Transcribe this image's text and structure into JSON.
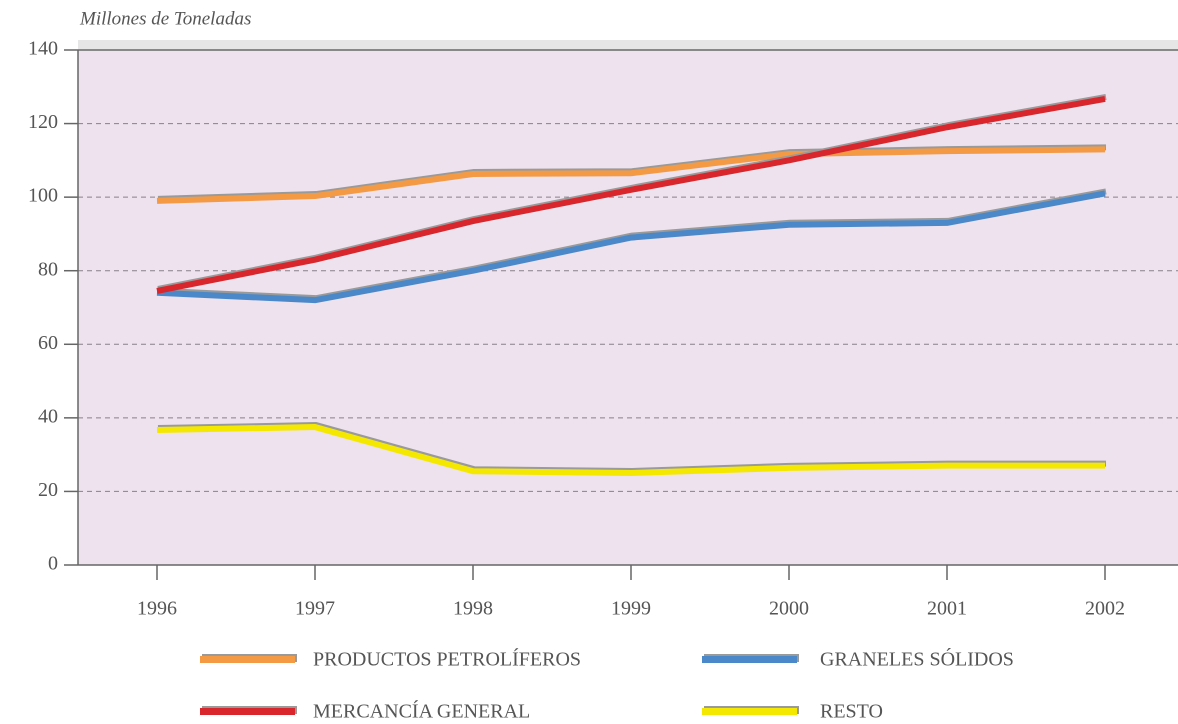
{
  "chart_data": {
    "type": "line",
    "y_axis_label": "Millones de Toneladas",
    "categories": [
      "1996",
      "1997",
      "1998",
      "1999",
      "2000",
      "2001",
      "2002"
    ],
    "series": [
      {
        "name": "PRODUCTOS PETROLÍFEROS",
        "color": "#f49a45",
        "values": [
          99,
          100.3,
          106.3,
          106.5,
          111.7,
          112.5,
          113
        ]
      },
      {
        "name": "GRANELES SÓLIDOS",
        "color": "#4a88c9",
        "values": [
          74,
          72,
          80,
          89,
          92.5,
          93,
          101
        ]
      },
      {
        "name": "MERCANCÍA GENERAL",
        "color": "#d9262c",
        "values": [
          74.5,
          83,
          93.5,
          102,
          110,
          119,
          126.7
        ]
      },
      {
        "name": "RESTO",
        "color": "#f5e800",
        "values": [
          36.7,
          37.5,
          25.5,
          25,
          26.4,
          27,
          27
        ]
      }
    ],
    "ylim": [
      0,
      140
    ],
    "yticks": [
      0,
      20,
      40,
      60,
      80,
      100,
      120,
      140
    ],
    "grid": true
  }
}
